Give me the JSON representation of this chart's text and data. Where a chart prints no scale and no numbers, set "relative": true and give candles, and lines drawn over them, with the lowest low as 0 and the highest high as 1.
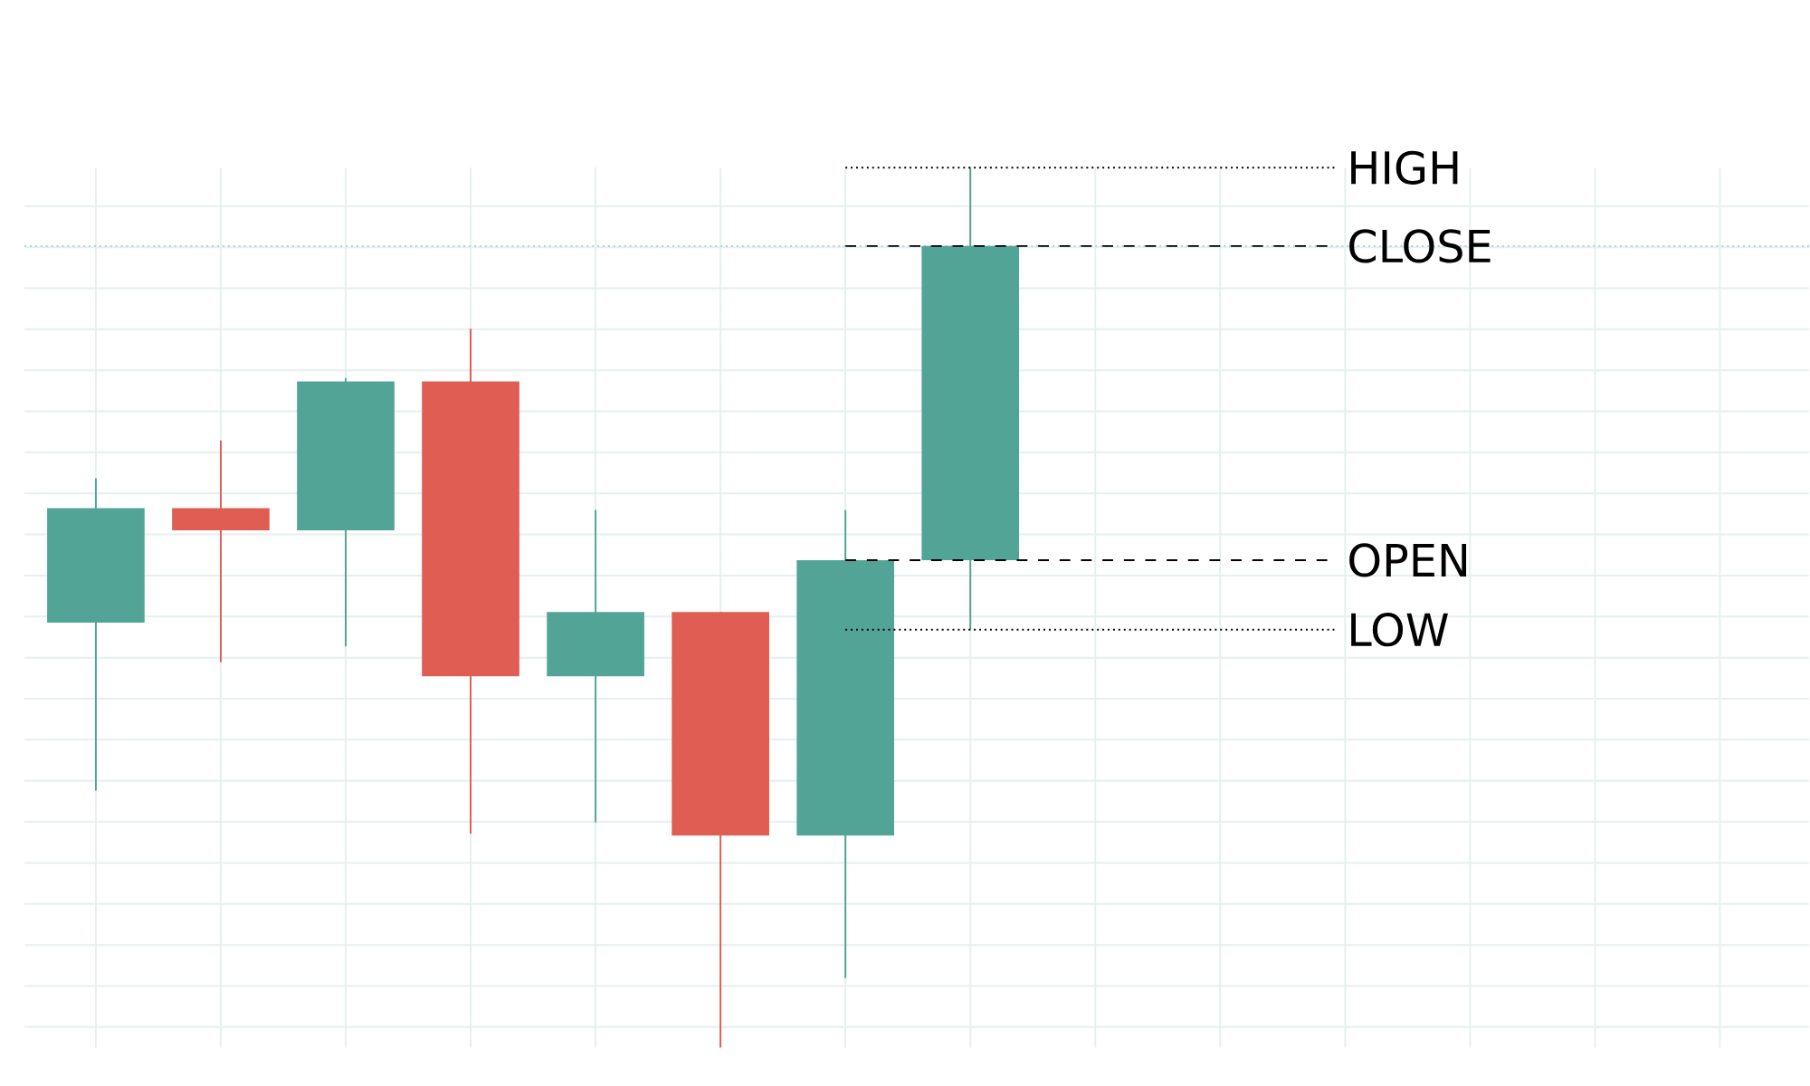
{
  "chart_data": {
    "type": "candlestick",
    "relative": true,
    "categories": [
      null,
      null,
      null,
      null,
      null,
      null,
      null,
      null
    ],
    "ohlc": [
      [
        0.483,
        0.647,
        0.292,
        0.613
      ],
      [
        0.613,
        0.69,
        0.438,
        0.588
      ],
      [
        0.588,
        0.761,
        0.456,
        0.757
      ],
      [
        0.757,
        0.817,
        0.243,
        0.422
      ],
      [
        0.422,
        0.611,
        0.256,
        0.495
      ],
      [
        0.495,
        0.495,
        0.0,
        0.241
      ],
      [
        0.241,
        0.611,
        0.079,
        0.554
      ],
      [
        0.554,
        1.0,
        0.475,
        0.911
      ]
    ],
    "colors": [
      "#52a596",
      "#e05d53",
      "#52a596",
      "#e05d53",
      "#52a596",
      "#e05d53",
      "#52a596",
      "#52a596"
    ],
    "grid": true,
    "ref_lines": [
      {
        "axis": "y",
        "value": 0.911,
        "color": "#a9cbe0",
        "line_style": "dotted"
      }
    ],
    "annotations": [
      "HIGH",
      "CLOSE",
      "OPEN",
      "LOW"
    ]
  }
}
